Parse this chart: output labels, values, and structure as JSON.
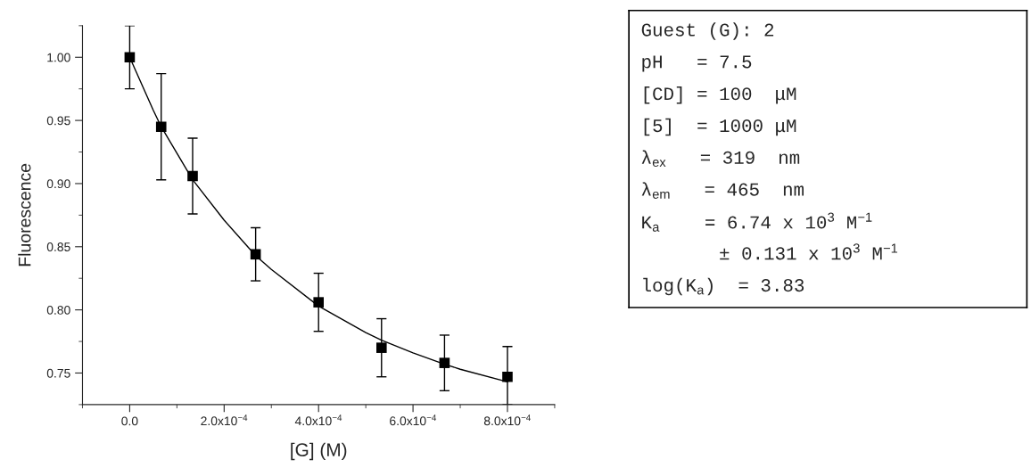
{
  "chart_data": [
    {
      "type": "scatter",
      "xlabel": "[G] (M)",
      "ylabel": "Fluorescence",
      "x": [
        0,
        6.67e-05,
        0.0001333,
        0.0002667,
        0.0004,
        0.0005333,
        0.0006667,
        0.0008
      ],
      "xlim": [
        -0.0001,
        0.0009
      ],
      "xticks": [
        {
          "value": 0,
          "label": "0.0"
        },
        {
          "value": 0.0002,
          "label": "2.0x10$^{−4}$"
        },
        {
          "value": 0.0004,
          "label": "4.0x10$^{−4}$"
        },
        {
          "value": 0.0006,
          "label": "6.0x10$^{−4}$"
        },
        {
          "value": 0.0008,
          "label": "8.0x10$^{−4}$"
        }
      ],
      "ylim": [
        0.725,
        1.025
      ],
      "yticks": [
        {
          "value": 0.75,
          "label": "0.75"
        },
        {
          "value": 0.8,
          "label": "0.80"
        },
        {
          "value": 0.85,
          "label": "0.85"
        },
        {
          "value": 0.9,
          "label": "0.90"
        },
        {
          "value": 0.95,
          "label": "0.95"
        },
        {
          "value": 1.0,
          "label": "1.00"
        }
      ],
      "series": [
        {
          "type": "scatter",
          "color": "#000000",
          "marker": "square",
          "values": [
            1.0,
            0.945,
            0.906,
            0.844,
            0.806,
            0.77,
            0.758,
            0.747
          ],
          "errors": [
            0.025,
            0.042,
            0.03,
            0.021,
            0.023,
            0.023,
            0.022,
            [
              0.725,
              0.771
            ]
          ]
        },
        {
          "type": "line",
          "color": "#000000",
          "marker": "none",
          "x": [
            0,
            5e-05,
            6.67e-05,
            0.0001,
            0.0001333,
            0.0002,
            0.0002667,
            0.0003,
            0.0004,
            0.0005,
            0.0005333,
            0.0006,
            0.0006667,
            0.0007,
            0.0008
          ],
          "values": [
            1.0,
            0.958,
            0.945,
            0.924,
            0.903,
            0.871,
            0.843,
            0.832,
            0.803,
            0.782,
            0.776,
            0.766,
            0.757,
            0.753,
            0.743
          ]
        }
      ]
    },
    {
      "type": "other",
      "annotations": [
        "Guest (G): 2",
        "pH   = 7.5",
        "[CD] = 100  μM",
        "[5]  = 1000 μM",
        "λ$_{ex}$   = 319  nm",
        "λ$_{em}$   = 465  nm",
        "K$_{a}$    = 6.74 x 10$^{3}$ M$^{−1}$",
        "       ± 0.131 x 10$^{3}$ M$^{−1}$",
        "log(K$_{a}$)  = 3.83"
      ]
    }
  ]
}
